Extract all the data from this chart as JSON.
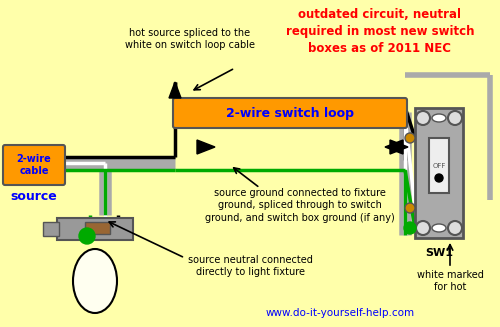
{
  "bg_color": "#FFFFAA",
  "title_text": "outdated circuit, neutral\nrequired in most new switch\nboxes as of 2011 NEC",
  "title_color": "#FF0000",
  "label_2wire_cable": "2-wire\ncable",
  "label_source": "source",
  "label_switch_loop": "2-wire switch loop",
  "label_hot_splice": "hot source spliced to the\nwhite on switch loop cable",
  "label_ground": "source ground connected to fixture\nground, spliced through to switch\nground, and switch box ground (if any)",
  "label_neutral": "source neutral connected\ndirectly to light fixture",
  "label_white_marked": "white marked\nfor hot",
  "label_sw1": "SW1",
  "label_off": "OFF",
  "label_website": "www.do-it-yourself-help.com",
  "orange_color": "#FF9900",
  "blue_color": "#0000FF",
  "red_color": "#FF0000",
  "black": "#000000",
  "white": "#FFFFFF",
  "green": "#00AA00",
  "gray": "#AAAAAA",
  "dark_gray": "#555555",
  "brown": "#996633",
  "light_gray": "#CCCCCC",
  "cream": "#FFFFF0"
}
